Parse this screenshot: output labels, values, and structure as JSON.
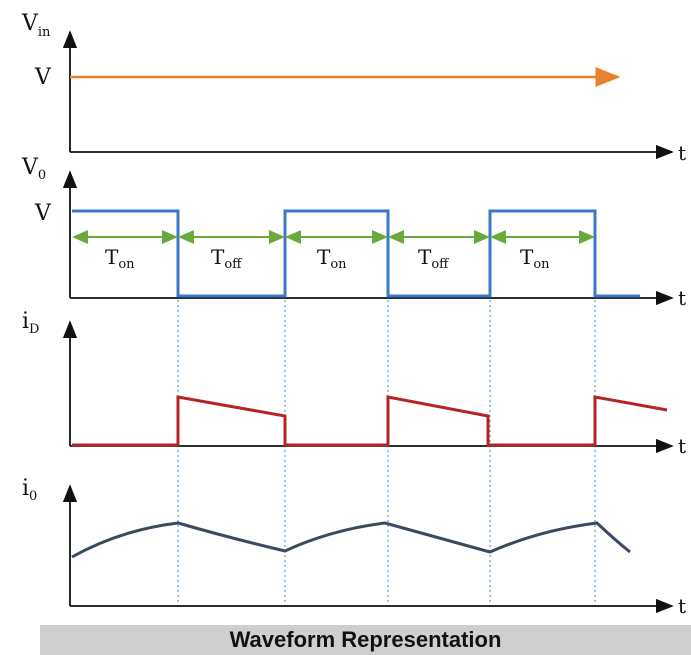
{
  "caption": "Waveform Representation",
  "colors": {
    "vin": "#e8812e",
    "vo": "#3b78c6",
    "arrow": "#6aaa3a",
    "id": "#b52323",
    "io": "#3b4a63",
    "axis": "#111111",
    "guide": "#5aa0d6"
  },
  "panels": [
    {
      "label_main": "V",
      "label_sub": "in",
      "axis_label": "t",
      "level_label": "V"
    },
    {
      "label_main": "V",
      "label_sub": "0",
      "axis_label": "t",
      "level_label": "V"
    },
    {
      "label_main": "i",
      "label_sub": "D",
      "axis_label": "t"
    },
    {
      "label_main": "i",
      "label_sub": "0",
      "axis_label": "t"
    }
  ],
  "intervals": [
    {
      "main": "T",
      "sub": "on"
    },
    {
      "main": "T",
      "sub": "off"
    },
    {
      "main": "T",
      "sub": "on"
    },
    {
      "main": "T",
      "sub": "off"
    },
    {
      "main": "T",
      "sub": "on"
    }
  ]
}
